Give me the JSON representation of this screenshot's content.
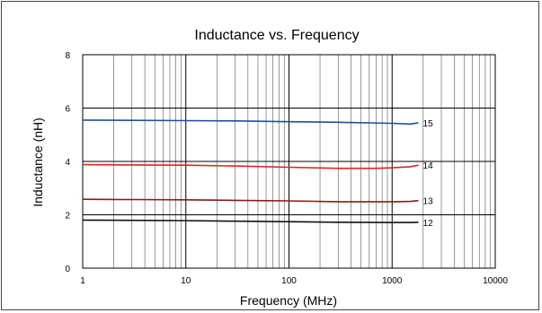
{
  "chart_data": {
    "type": "line",
    "title": "Inductance vs. Frequency",
    "xlabel": "Frequency (MHz)",
    "ylabel": "Inductance (nH)",
    "x_scale": "log",
    "xlim": [
      1,
      10000
    ],
    "ylim": [
      0,
      8
    ],
    "x_ticks": [
      1,
      10,
      100,
      1000,
      10000
    ],
    "x_tick_labels": [
      "1",
      "10",
      "100",
      "1000",
      "10000"
    ],
    "y_ticks": [
      0,
      2,
      4,
      6,
      8
    ],
    "y_tick_labels": [
      "0",
      "2",
      "4",
      "6",
      "8"
    ],
    "grid": true,
    "series": [
      {
        "name": "15",
        "color": "#1f4e9c",
        "x": [
          1,
          3,
          10,
          30,
          100,
          300,
          1000,
          1500,
          1800
        ],
        "y": [
          5.55,
          5.54,
          5.53,
          5.52,
          5.49,
          5.47,
          5.43,
          5.4,
          5.45
        ]
      },
      {
        "name": "14",
        "color": "#e0251b",
        "x": [
          1,
          3,
          10,
          30,
          100,
          300,
          700,
          1000,
          1500,
          1800
        ],
        "y": [
          3.88,
          3.87,
          3.86,
          3.83,
          3.78,
          3.74,
          3.74,
          3.76,
          3.8,
          3.86
        ]
      },
      {
        "name": "13",
        "color": "#8b1a1a",
        "x": [
          1,
          3,
          10,
          30,
          100,
          300,
          1000,
          1500,
          1800
        ],
        "y": [
          2.58,
          2.57,
          2.56,
          2.54,
          2.52,
          2.49,
          2.49,
          2.5,
          2.53
        ]
      },
      {
        "name": "12",
        "color": "#111111",
        "x": [
          1,
          3,
          10,
          30,
          100,
          300,
          1000,
          1500,
          1800
        ],
        "y": [
          1.8,
          1.79,
          1.78,
          1.76,
          1.74,
          1.72,
          1.71,
          1.71,
          1.72
        ]
      }
    ]
  }
}
